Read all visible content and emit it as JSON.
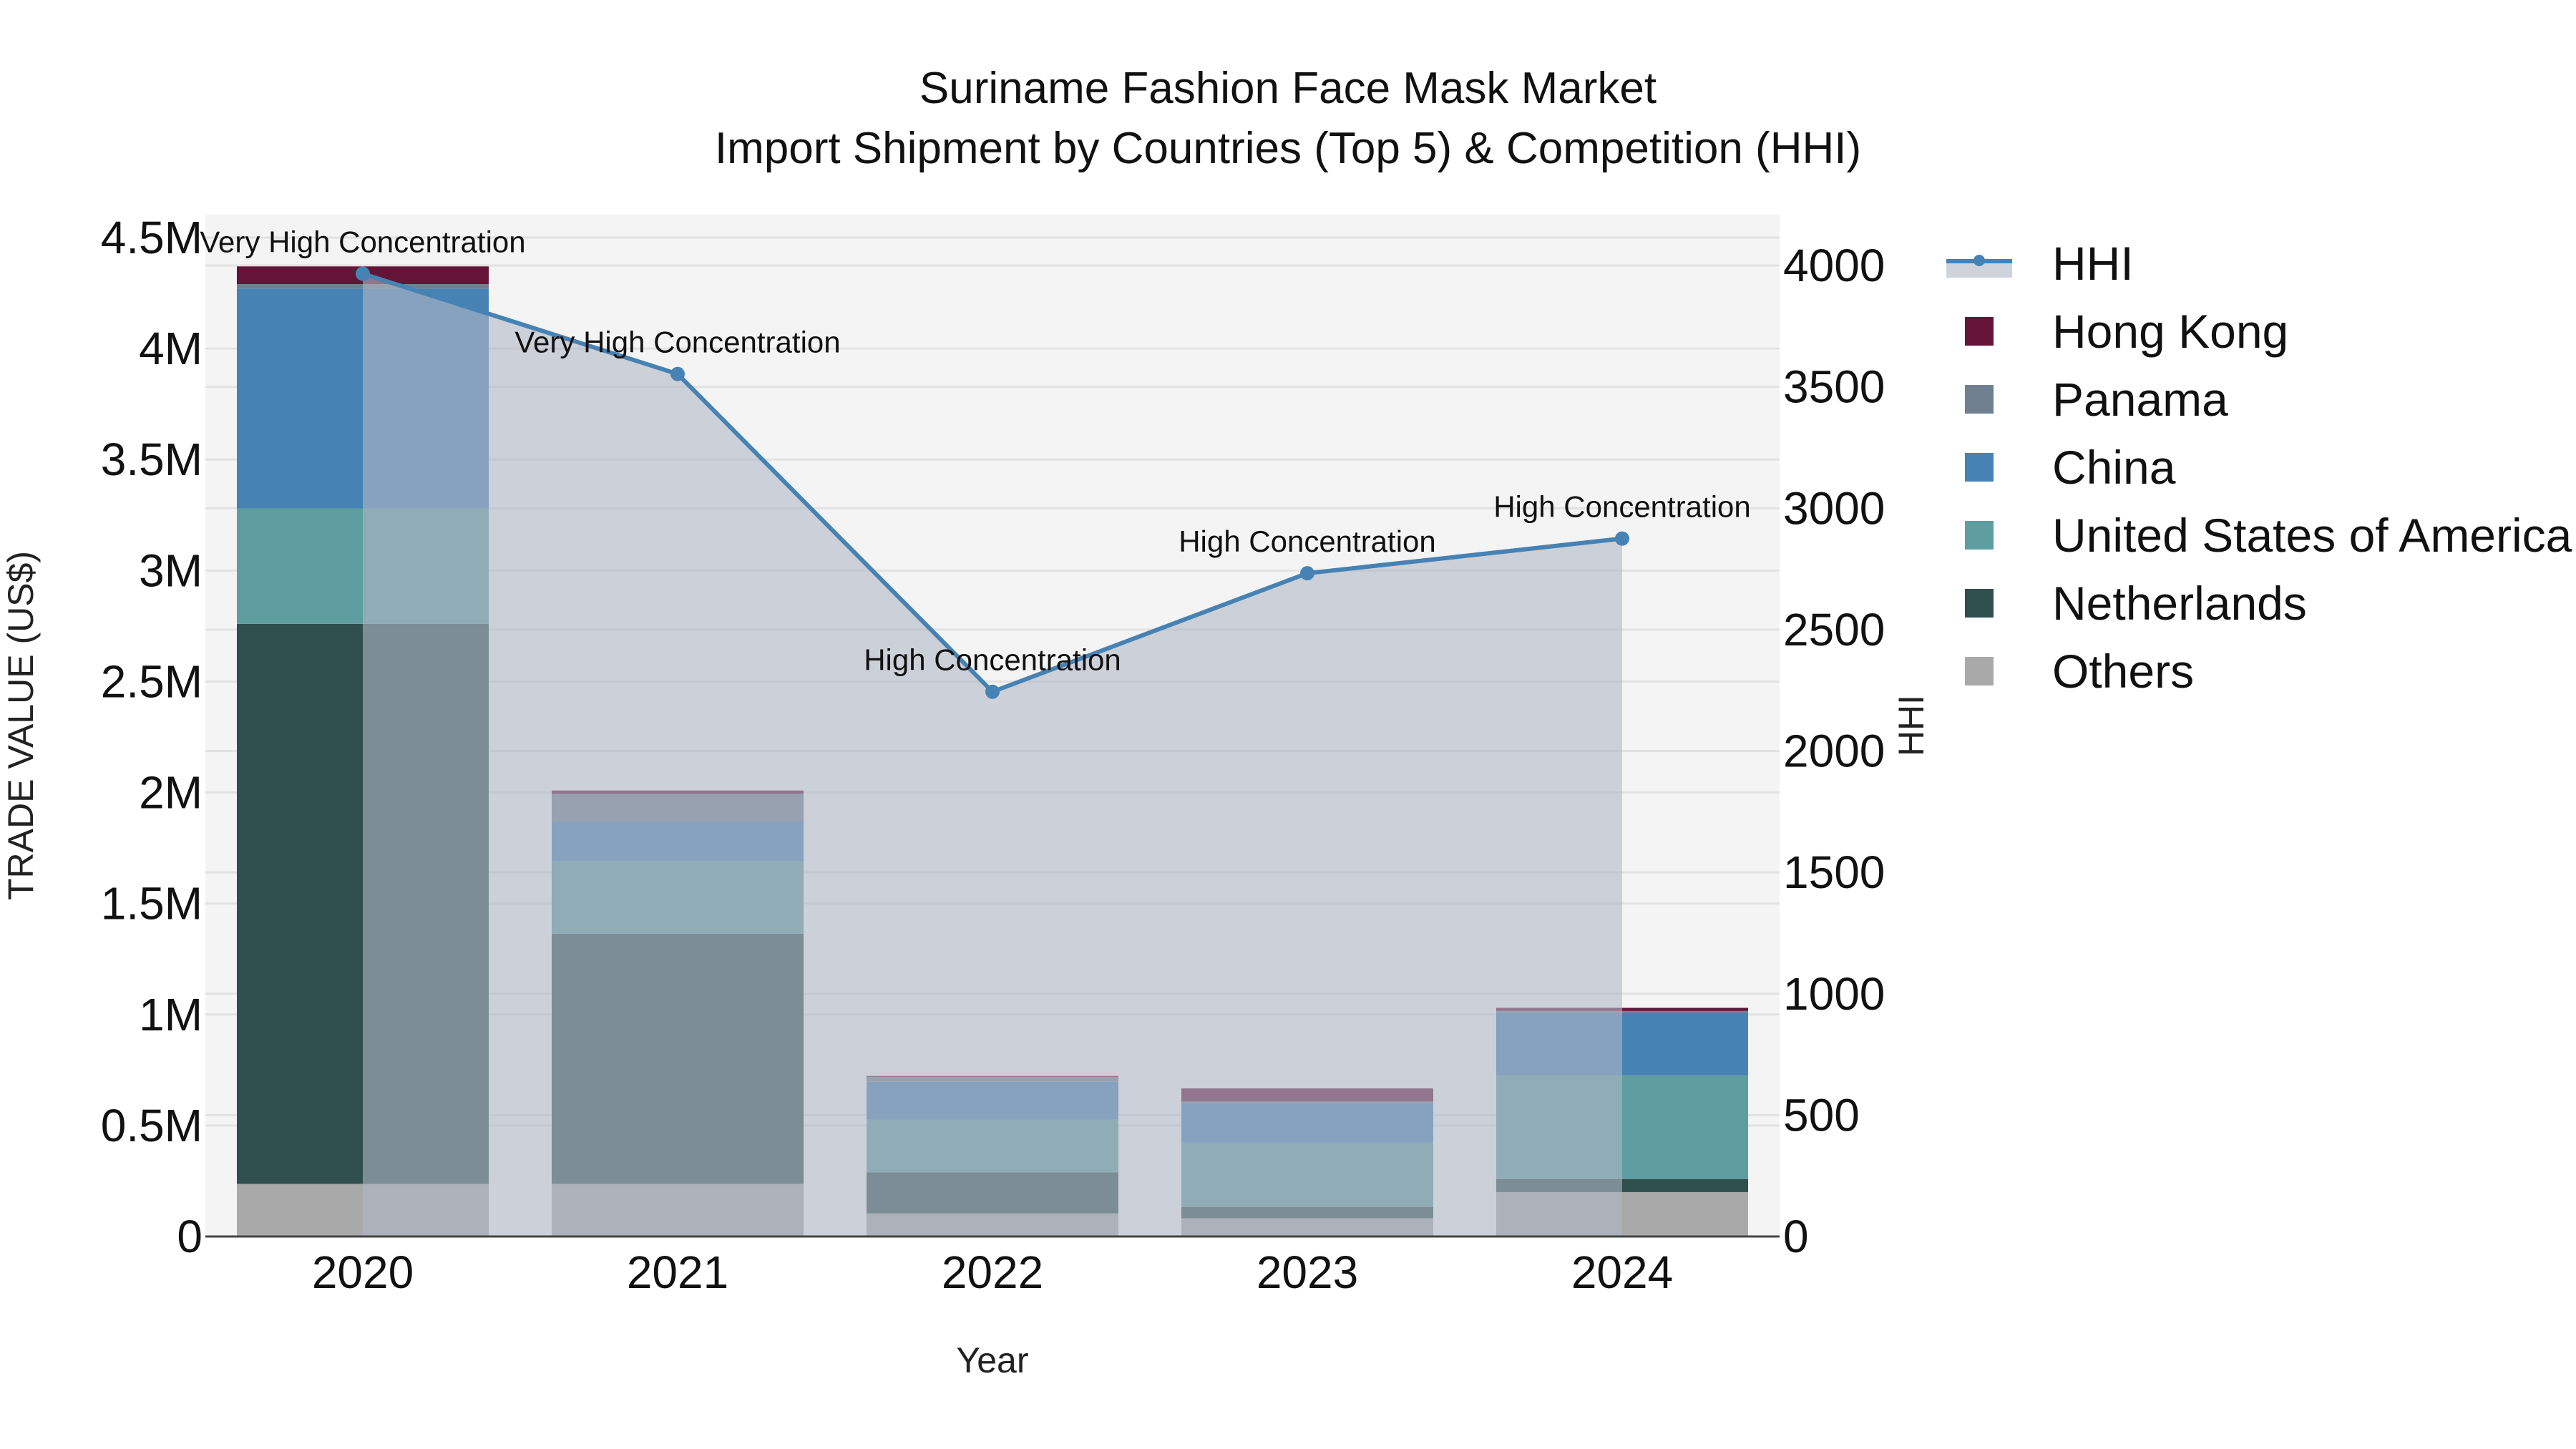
{
  "title": {
    "line1": "Suriname Fashion Face Mask Market",
    "line2": "Import Shipment by Countries (Top 5) & Competition (HHI)"
  },
  "axes": {
    "x_label": "Year",
    "y_left_label": "TRADE VALUE (US$)",
    "y_right_label": "HHI",
    "y_left_ticks": [
      "0",
      "0.5M",
      "1M",
      "1.5M",
      "2M",
      "2.5M",
      "3M",
      "3.5M",
      "4M",
      "4.5M"
    ],
    "y_right_ticks": [
      "0",
      "500",
      "1000",
      "1500",
      "2000",
      "2500",
      "3000",
      "3500",
      "4000"
    ]
  },
  "legend": [
    {
      "label": "HHI",
      "color": "#4682b4",
      "type": "line"
    },
    {
      "label": "Hong Kong",
      "color": "#641537",
      "type": "bar"
    },
    {
      "label": "Panama",
      "color": "#708090",
      "type": "bar"
    },
    {
      "label": "China",
      "color": "#4682b4",
      "type": "bar"
    },
    {
      "label": "United States of America",
      "color": "#5f9ea0",
      "type": "bar"
    },
    {
      "label": "Netherlands",
      "color": "#2f4f4f",
      "type": "bar"
    },
    {
      "label": "Others",
      "color": "#a9a9a9",
      "type": "bar"
    }
  ],
  "chart_data": {
    "type": "bar",
    "title": "Suriname Fashion Face Mask Market - Import Shipment by Countries (Top 5) & Competition (HHI)",
    "xlabel": "Year",
    "ylabel": "TRADE VALUE (US$)",
    "y2label": "HHI",
    "ylim": [
      0,
      4500000
    ],
    "y2lim": [
      0,
      4120
    ],
    "stacked": true,
    "categories": [
      "2020",
      "2021",
      "2022",
      "2023",
      "2024"
    ],
    "series": [
      {
        "name": "Others",
        "color": "#a9a9a9",
        "values": [
          237000,
          237000,
          104000,
          82000,
          200000
        ]
      },
      {
        "name": "Netherlands",
        "color": "#2f4f4f",
        "values": [
          2523000,
          1127000,
          185000,
          51000,
          59000
        ]
      },
      {
        "name": "United States of America",
        "color": "#5f9ea0",
        "values": [
          520000,
          326000,
          237000,
          290000,
          467000
        ]
      },
      {
        "name": "China",
        "color": "#4682b4",
        "values": [
          990000,
          178000,
          171000,
          177000,
          282000
        ]
      },
      {
        "name": "Panama",
        "color": "#708090",
        "values": [
          20000,
          126000,
          22000,
          8000,
          8000
        ]
      },
      {
        "name": "Hong Kong",
        "color": "#641537",
        "values": [
          80000,
          15000,
          4000,
          59000,
          14000
        ]
      }
    ],
    "line_series": {
      "name": "HHI",
      "axis": "right",
      "color": "#4682b4",
      "fill": "tozeroy",
      "values": [
        3966,
        3553,
        2244,
        2732,
        2875
      ],
      "annotations": [
        "Very High Concentration",
        "Very High Concentration",
        "High Concentration",
        "High Concentration",
        "High Concentration"
      ]
    },
    "grid": true,
    "legend_position": "right"
  }
}
